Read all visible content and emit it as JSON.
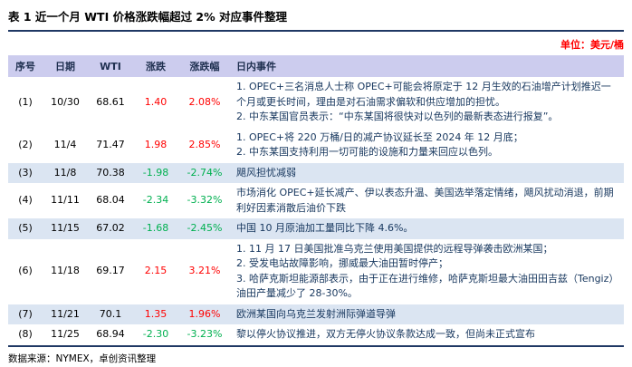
{
  "title": "表 1 近一个月 WTI 价格涨跌幅超过 2% 对应事件整理",
  "unit": "单位：美元/桶",
  "source": "数据来源：NYMEX，卓创资讯整理",
  "colors": {
    "up": "#ff0000",
    "down": "#00b050",
    "header_bg": "#ccccee",
    "shade_bg": "#dbe5f2",
    "event_text": "#17375e",
    "rule": "#1f3864"
  },
  "table": {
    "headers": [
      "序号",
      "日期",
      "WTI",
      "涨跌",
      "涨跌幅",
      "日内事件"
    ],
    "rows": [
      {
        "no": "(1)",
        "date": "10/30",
        "wti": "68.61",
        "change": "1.40",
        "change_pct": "2.08%",
        "trend": "up",
        "events": "1. OPEC+三名消息人士称 OPEC+可能会将原定于 12 月生效的石油增产计划推迟一个月或更长时间，理由是对石油需求偏软和供应增加的担忧。\n2. 中东某国官员表示：“中东某国将很快对以色列的最新表态进行报复”。"
      },
      {
        "no": "(2)",
        "date": "11/4",
        "wti": "71.47",
        "change": "1.98",
        "change_pct": "2.85%",
        "trend": "up",
        "events": "1. OPEC+将 220 万桶/日的减产协议延长至 2024 年 12 月底；\n2. 中东某国支持利用一切可能的设施和力量来回应以色列。"
      },
      {
        "no": "(3)",
        "date": "11/8",
        "wti": "70.38",
        "change": "-1.98",
        "change_pct": "-2.74%",
        "trend": "down",
        "events": "飓风担忧减弱"
      },
      {
        "no": "(4)",
        "date": "11/11",
        "wti": "68.04",
        "change": "-2.34",
        "change_pct": "-3.32%",
        "trend": "down",
        "events": "市场消化 OPEC+延长减产、伊以表态升温、美国选举落定情绪，飓风扰动消退，前期利好因素消散后油价下跌"
      },
      {
        "no": "(5)",
        "date": "11/15",
        "wti": "67.02",
        "change": "-1.68",
        "change_pct": "-2.45%",
        "trend": "down",
        "events": "中国 10 月原油加工量同比下降 4.6%。"
      },
      {
        "no": "(6)",
        "date": "11/18",
        "wti": "69.17",
        "change": "2.15",
        "change_pct": "3.21%",
        "trend": "up",
        "events": "1. 11 月 17 日美国批准乌克兰使用美国提供的远程导弹袭击欧洲某国；\n2. 受发电站故障影响，挪威最大油田暂时停产；\n3. 哈萨克斯坦能源部表示，由于正在进行维修，哈萨克斯坦最大油田田吉兹（Tengiz）油田产量减少了 28-30%。"
      },
      {
        "no": "(7)",
        "date": "11/21",
        "wti": "70.1",
        "change": "1.35",
        "change_pct": "1.96%",
        "trend": "up",
        "events": "欧洲某国向乌克兰发射洲际弹道导弹"
      },
      {
        "no": "(8)",
        "date": "11/25",
        "wti": "68.94",
        "change": "-2.30",
        "change_pct": "-3.23%",
        "trend": "down",
        "events": "黎以停火协议推进，双方无停火协议条款达成一致，但尚未正式宣布"
      }
    ]
  }
}
